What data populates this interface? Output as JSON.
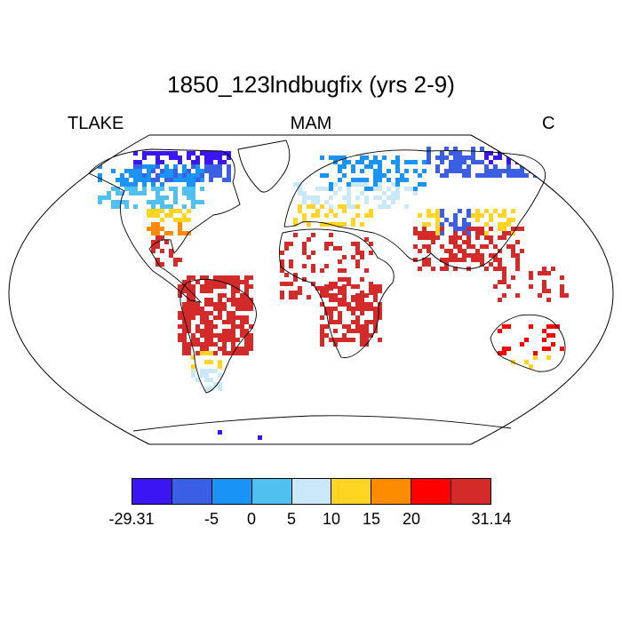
{
  "title": "1850_123lndbugfix (yrs 2-9)",
  "variable": "TLAKE",
  "season": "MAM",
  "units": "C",
  "colorbar": {
    "colors": [
      "#3b16f2",
      "#3a5fe4",
      "#1a93f7",
      "#50c0f0",
      "#c9e8f9",
      "#ffd423",
      "#ff8c00",
      "#ff0000",
      "#d42a2a"
    ],
    "labels": [
      "-29.31",
      "-5",
      "0",
      "5",
      "10",
      "15",
      "20",
      "31.14"
    ]
  },
  "map": {
    "projection": "Robinson",
    "land_fill": "#ffffff",
    "coastline_color": "#000000"
  }
}
